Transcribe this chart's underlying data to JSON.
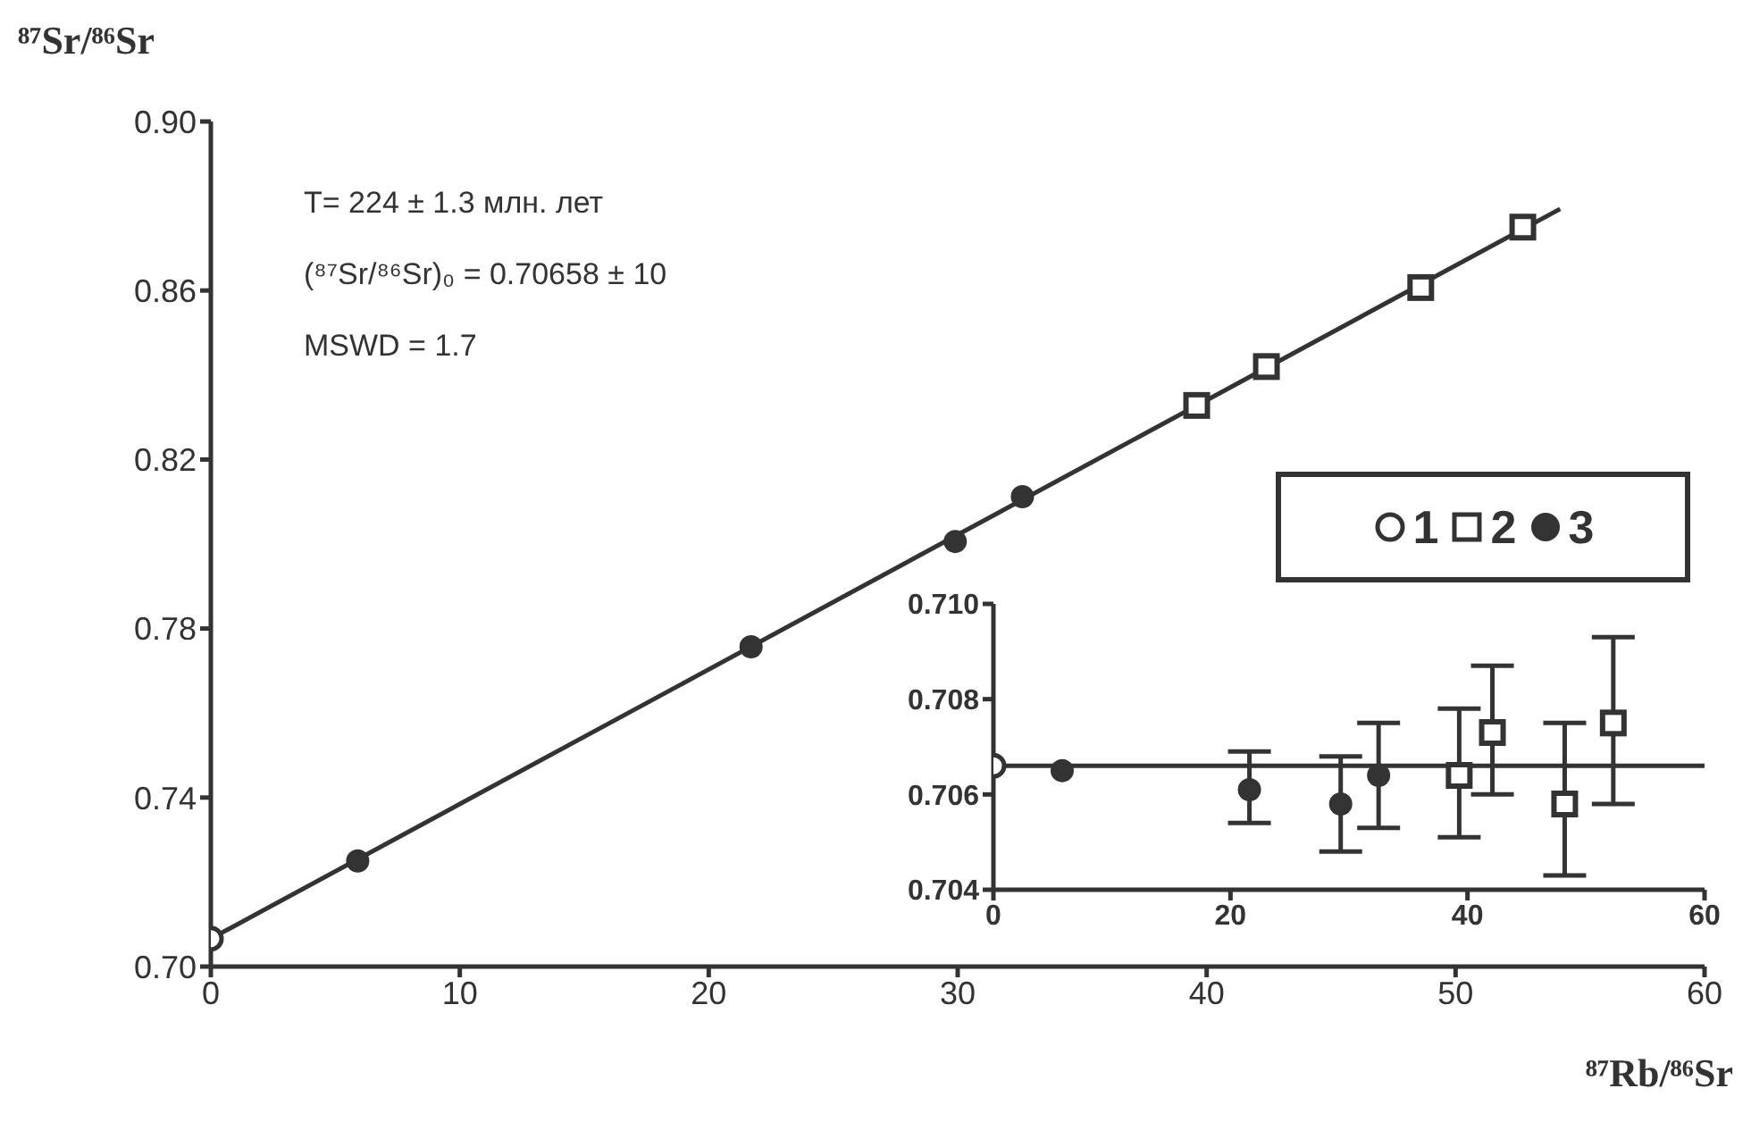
{
  "chart_data": [
    {
      "type": "scatter",
      "xlabel": "⁸⁷Rb/⁸⁶Sr",
      "ylabel": "⁸⁷Sr/⁸⁶Sr",
      "annotations": [
        "T= 224  ± 1.3 млн. лет",
        "(⁸⁷Sr/⁸⁶Sr)₀ = 0.70658 ± 10",
        "MSWD = 1.7"
      ],
      "xlim": [
        0,
        60
      ],
      "xticks": [
        0,
        10,
        20,
        30,
        40,
        50,
        60
      ],
      "ylim": [
        0.7,
        0.9
      ],
      "yticks": [
        {
          "value": 0.7,
          "label": "0.70"
        },
        0.74,
        0.78,
        0.82,
        0.86,
        {
          "value": 0.9,
          "label": "0.90"
        }
      ],
      "legend": "right",
      "series": [
        {
          "name": "1",
          "color": "#333333",
          "marker": "circle",
          "x": [
            0
          ],
          "values": [
            0.7066
          ]
        },
        {
          "name": "2",
          "color": "#333333",
          "marker": "square",
          "x": [
            39.6,
            42.4,
            48.6,
            52.7
          ],
          "values": [
            0.8328,
            0.842,
            0.8607,
            0.875
          ]
        },
        {
          "name": "3",
          "color": "#333333",
          "marker": "circle",
          "x": [
            5.9,
            21.7,
            29.9,
            32.6
          ],
          "values": [
            0.725,
            0.7757,
            0.8006,
            0.8112
          ]
        },
        {
          "type": "line",
          "color": "#333333",
          "x": [
            0,
            54.2
          ],
          "values": [
            0.7066,
            0.8793
          ]
        }
      ]
    },
    {
      "type": "scatter",
      "xlim": [
        0,
        60
      ],
      "xticks": [
        0,
        20,
        40,
        60
      ],
      "ylim": [
        0.704,
        0.71
      ],
      "yticks": [
        0.704,
        0.706,
        0.708,
        {
          "value": 0.71,
          "label": "0.710"
        }
      ],
      "series": [
        {
          "color": "#333333",
          "marker": "circle",
          "x": [
            0
          ],
          "values": [
            0.7066
          ]
        },
        {
          "color": "#333333",
          "marker": "square",
          "x": [
            39.3,
            42.1,
            48.2,
            52.3
          ],
          "values": [
            0.7064,
            0.7073,
            0.7058,
            0.7075
          ],
          "errors": [
            [
              0.7051,
              0.7078
            ],
            [
              0.706,
              0.7087
            ],
            [
              0.7043,
              0.7075
            ],
            [
              0.7058,
              0.7093
            ]
          ]
        },
        {
          "color": "#333333",
          "marker": "circle",
          "x": [
            5.8,
            21.6,
            29.3,
            32.5
          ],
          "values": [
            0.7065,
            0.7061,
            0.7058,
            0.7064
          ],
          "errors": [
            null,
            [
              0.7054,
              0.7069
            ],
            [
              0.7048,
              0.7068
            ],
            [
              0.7053,
              0.7075
            ]
          ]
        },
        {
          "type": "line",
          "color": "#333333",
          "x": [
            0,
            60
          ],
          "values": [
            0.7066,
            0.7066
          ]
        }
      ]
    }
  ]
}
